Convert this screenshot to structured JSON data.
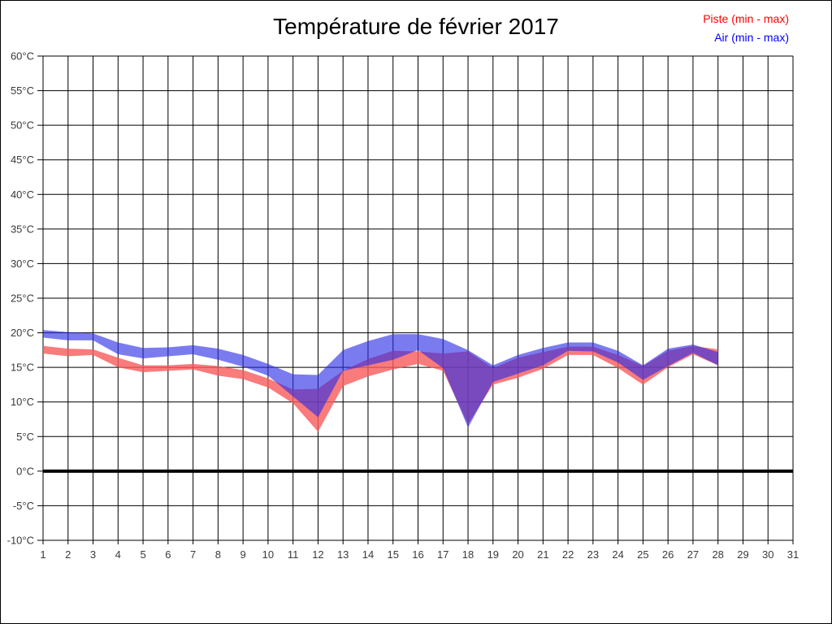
{
  "header": {
    "title": "Température de février 2017"
  },
  "legend": {
    "items": [
      {
        "label": "Piste (min - max)",
        "color": "#ff0000"
      },
      {
        "label": "Air (min - max)",
        "color": "#0000ff"
      }
    ]
  },
  "canvas": {
    "background": "#ffffff",
    "border_color": "#000000",
    "grid_color": "#000000",
    "zero_line_color": "#000000"
  },
  "chart_data": {
    "type": "area",
    "title": "Température de février 2017",
    "xlabel": "",
    "ylabel": "",
    "grid": true,
    "legend_position": "top-right",
    "x_axis": {
      "min": 1,
      "max": 31,
      "tick_labels": [
        "1",
        "2",
        "3",
        "4",
        "5",
        "6",
        "7",
        "8",
        "9",
        "10",
        "11",
        "12",
        "13",
        "14",
        "15",
        "16",
        "17",
        "18",
        "19",
        "20",
        "21",
        "22",
        "23",
        "24",
        "25",
        "26",
        "27",
        "28",
        "29",
        "30",
        "31"
      ]
    },
    "y_axis": {
      "min": -10,
      "max": 60,
      "step": 5,
      "suffix": "°C",
      "tick_labels": [
        "60°C",
        "55°C",
        "50°C",
        "45°C",
        "40°C",
        "35°C",
        "30°C",
        "25°C",
        "20°C",
        "15°C",
        "10°C",
        "5°C",
        "0°C",
        "-5°C",
        "-10°C"
      ]
    },
    "zero_line": {
      "value": 0,
      "thickness": 4
    },
    "days": [
      1,
      2,
      3,
      4,
      5,
      6,
      7,
      8,
      9,
      10,
      11,
      12,
      13,
      14,
      15,
      16,
      17,
      18,
      19,
      20,
      21,
      22,
      23,
      24,
      25,
      26,
      27,
      28
    ],
    "series": [
      {
        "name": "Piste (min - max)",
        "fill": "rgba(248,90,90,0.8)",
        "legend_color": "#ff0000",
        "min": [
          17.0,
          16.6,
          16.8,
          15.0,
          14.3,
          14.5,
          14.7,
          13.8,
          13.3,
          12.1,
          9.8,
          5.7,
          12.3,
          13.7,
          14.7,
          15.5,
          14.5,
          6.8,
          12.5,
          13.5,
          14.8,
          16.8,
          16.8,
          14.9,
          12.5,
          15.0,
          16.9,
          15.3
        ],
        "max": [
          18.1,
          17.7,
          17.6,
          16.4,
          15.3,
          15.3,
          15.5,
          15.2,
          14.6,
          13.4,
          11.8,
          11.9,
          14.5,
          16.2,
          17.4,
          17.3,
          17.0,
          17.3,
          14.9,
          16.4,
          17.2,
          18.0,
          18.0,
          16.8,
          15.2,
          17.4,
          18.1,
          17.6
        ]
      },
      {
        "name": "Air (min - max)",
        "fill": "rgba(42,42,231,0.62)",
        "legend_color": "#0000ff",
        "min": [
          19.3,
          18.9,
          18.9,
          16.9,
          16.3,
          16.6,
          16.9,
          16.1,
          15.1,
          13.8,
          10.8,
          7.8,
          14.5,
          15.3,
          16.1,
          17.5,
          14.9,
          6.3,
          12.9,
          14.1,
          15.3,
          17.4,
          17.3,
          15.7,
          13.2,
          15.2,
          17.1,
          15.3
        ],
        "max": [
          20.4,
          20.1,
          19.9,
          18.6,
          17.8,
          17.9,
          18.2,
          17.7,
          16.8,
          15.5,
          14.0,
          13.9,
          17.5,
          18.8,
          19.8,
          19.8,
          19.1,
          17.5,
          15.3,
          16.8,
          17.8,
          18.6,
          18.6,
          17.4,
          15.3,
          17.7,
          18.3,
          17.2
        ]
      }
    ]
  }
}
